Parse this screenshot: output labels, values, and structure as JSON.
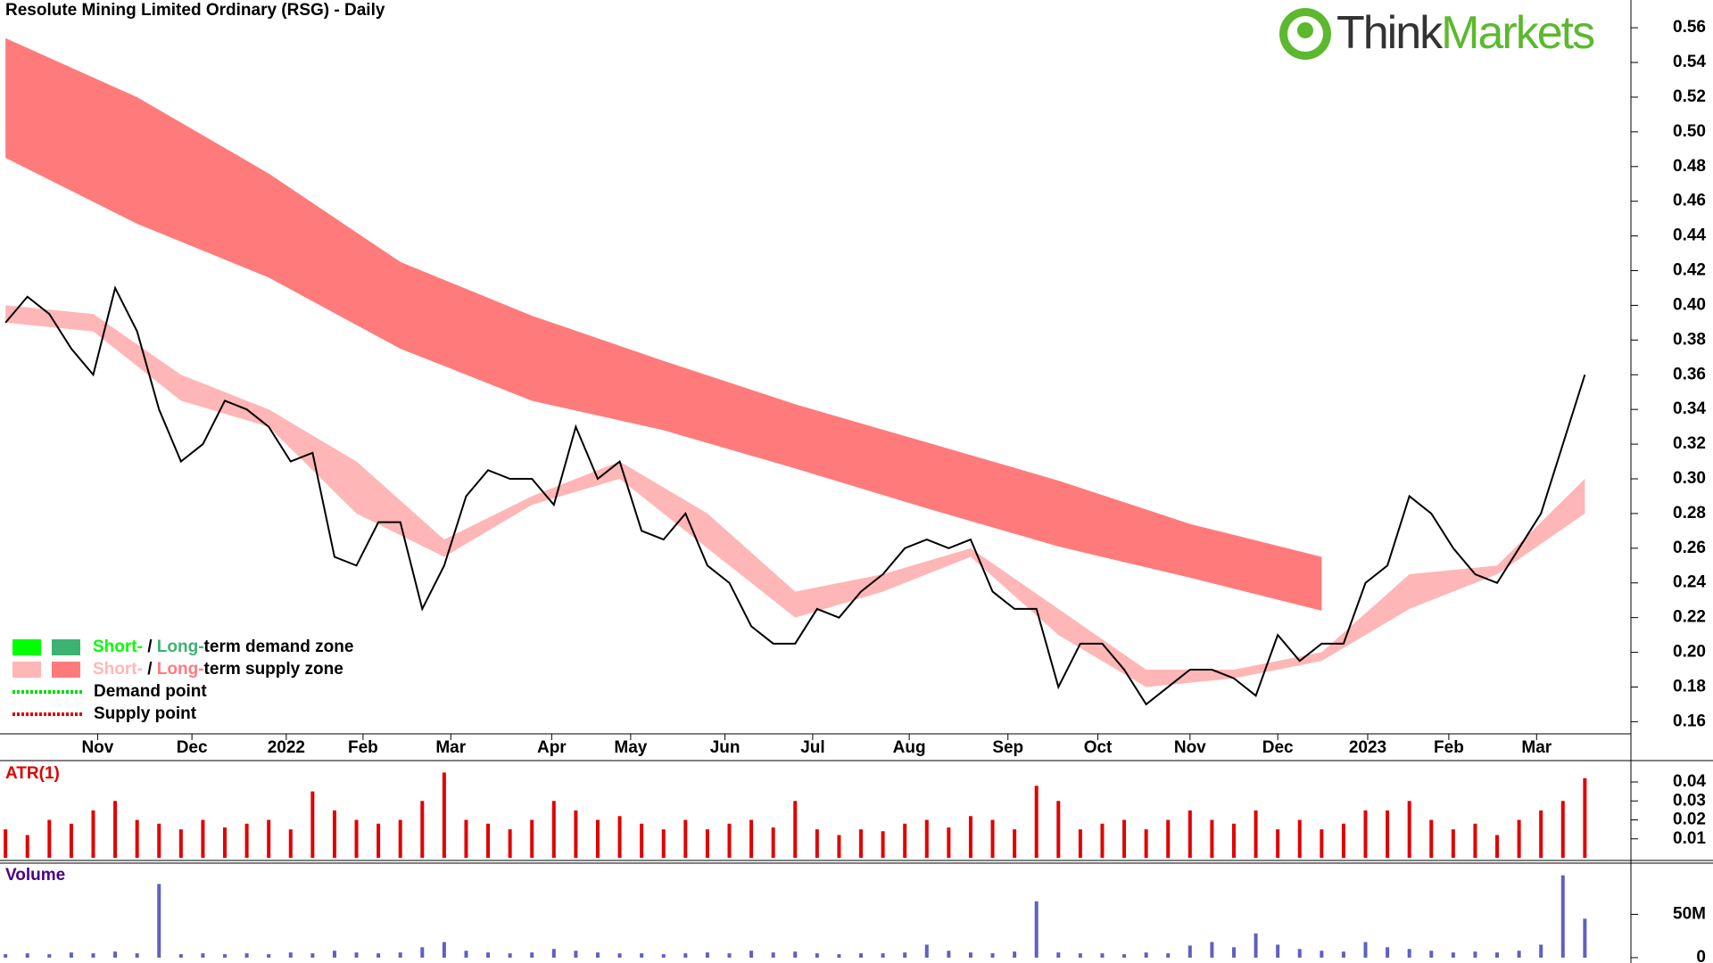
{
  "chart_data": [
    {
      "type": "price",
      "title": "Resolute Mining Limited Ordinary (RSG) - Daily",
      "logo": [
        "Think",
        "Markets"
      ],
      "x": [
        0,
        1,
        2,
        3,
        4,
        5,
        6,
        7,
        8,
        9,
        10,
        11,
        12,
        13,
        14,
        15,
        16,
        17,
        18,
        19,
        20,
        21,
        22,
        23,
        24,
        25,
        26,
        27,
        28,
        29,
        30,
        31,
        32,
        33,
        34,
        35,
        36,
        37,
        38,
        39,
        40,
        41,
        42,
        43,
        44,
        45,
        46,
        47,
        48,
        49,
        50,
        51,
        52,
        53,
        54,
        55,
        56,
        57,
        58,
        59,
        60,
        61,
        62,
        63,
        64,
        65,
        66,
        67,
        68,
        69,
        70,
        71,
        72
      ],
      "xlim": [
        -0.25,
        74.1
      ],
      "xticks": [
        {
          "value": 4.2,
          "label": "Nov"
        },
        {
          "value": 8.5,
          "label": "Dec"
        },
        {
          "value": 12.8,
          "label": "2022"
        },
        {
          "value": 16.3,
          "label": "Feb"
        },
        {
          "value": 20.3,
          "label": "Mar"
        },
        {
          "value": 24.9,
          "label": "Apr"
        },
        {
          "value": 28.5,
          "label": "May"
        },
        {
          "value": 32.8,
          "label": "Jun"
        },
        {
          "value": 36.8,
          "label": "Jul"
        },
        {
          "value": 41.2,
          "label": "Aug"
        },
        {
          "value": 45.7,
          "label": "Sep"
        },
        {
          "value": 49.8,
          "label": "Oct"
        },
        {
          "value": 54.0,
          "label": "Nov"
        },
        {
          "value": 58.0,
          "label": "Dec"
        },
        {
          "value": 62.1,
          "label": "2023"
        },
        {
          "value": 65.8,
          "label": "Feb"
        },
        {
          "value": 69.8,
          "label": "Mar"
        }
      ],
      "ylim": [
        0.153,
        0.576
      ],
      "yticks": [
        {
          "value": 0.16,
          "label": "0.16"
        },
        {
          "value": 0.18,
          "label": "0.18"
        },
        {
          "value": 0.2,
          "label": "0.20"
        },
        {
          "value": 0.22,
          "label": "0.22"
        },
        {
          "value": 0.24,
          "label": "0.24"
        },
        {
          "value": 0.26,
          "label": "0.26"
        },
        {
          "value": 0.28,
          "label": "0.28"
        },
        {
          "value": 0.3,
          "label": "0.30"
        },
        {
          "value": 0.32,
          "label": "0.32"
        },
        {
          "value": 0.34,
          "label": "0.34"
        },
        {
          "value": 0.36,
          "label": "0.36"
        },
        {
          "value": 0.38,
          "label": "0.38"
        },
        {
          "value": 0.4,
          "label": "0.40"
        },
        {
          "value": 0.42,
          "label": "0.42"
        },
        {
          "value": 0.44,
          "label": "0.44"
        },
        {
          "value": 0.46,
          "label": "0.46"
        },
        {
          "value": 0.48,
          "label": "0.48"
        },
        {
          "value": 0.5,
          "label": "0.50"
        },
        {
          "value": 0.52,
          "label": "0.52"
        },
        {
          "value": 0.54,
          "label": "0.54"
        },
        {
          "value": 0.56,
          "label": "0.56"
        }
      ],
      "series": [
        {
          "color": "#000000",
          "values": [
            0.39,
            0.405,
            0.395,
            0.375,
            0.36,
            0.41,
            0.385,
            0.34,
            0.31,
            0.32,
            0.345,
            0.34,
            0.33,
            0.31,
            0.315,
            0.255,
            0.25,
            0.275,
            0.275,
            0.225,
            0.25,
            0.29,
            0.305,
            0.3,
            0.3,
            0.285,
            0.33,
            0.3,
            0.31,
            0.27,
            0.265,
            0.28,
            0.25,
            0.24,
            0.215,
            0.205,
            0.205,
            0.225,
            0.22,
            0.235,
            0.245,
            0.26,
            0.265,
            0.26,
            0.265,
            0.235,
            0.225,
            0.225,
            0.18,
            0.205,
            0.205,
            0.19,
            0.17,
            0.18,
            0.19,
            0.19,
            0.185,
            0.175,
            0.21,
            0.195,
            0.205,
            0.205,
            0.24,
            0.25,
            0.29,
            0.28,
            0.26,
            0.245,
            0.24,
            0.26,
            0.28,
            0.32,
            0.36
          ]
        }
      ],
      "zones": [
        {
          "color": "#ff7b7b",
          "x": [
            0,
            6,
            12,
            18,
            24,
            30,
            36,
            42,
            48,
            54,
            60
          ],
          "upper": [
            0.554,
            0.52,
            0.476,
            0.425,
            0.394,
            0.368,
            0.343,
            0.321,
            0.299,
            0.274,
            0.255
          ],
          "lower": [
            0.485,
            0.447,
            0.416,
            0.375,
            0.345,
            0.328,
            0.306,
            0.283,
            0.261,
            0.243,
            0.224
          ]
        },
        {
          "color": "#ffb6b6",
          "x": [
            0,
            4,
            8,
            12,
            16,
            20,
            24,
            28,
            32,
            36,
            40,
            44,
            48,
            52,
            56,
            60,
            64,
            68,
            72
          ],
          "upper": [
            0.4,
            0.395,
            0.36,
            0.34,
            0.31,
            0.265,
            0.29,
            0.31,
            0.28,
            0.235,
            0.245,
            0.26,
            0.225,
            0.19,
            0.19,
            0.2,
            0.245,
            0.25,
            0.3
          ],
          "lower": [
            0.39,
            0.385,
            0.345,
            0.33,
            0.28,
            0.255,
            0.285,
            0.3,
            0.26,
            0.22,
            0.235,
            0.255,
            0.21,
            0.18,
            0.185,
            0.195,
            0.225,
            0.245,
            0.28
          ]
        }
      ],
      "legend": [
        {
          "short": "Short-",
          "sep": " / ",
          "long": "Long-",
          "rest": "term demand zone",
          "colors": [
            "#00ff00",
            "#3cb371"
          ]
        },
        {
          "short": "Short-",
          "sep": " / ",
          "long": "Long-",
          "rest": "term supply zone",
          "colors": [
            "#ffb6b6",
            "#ff7b7b"
          ]
        },
        {
          "label": "Demand point",
          "color": "#00dd00"
        },
        {
          "label": "Supply point",
          "color": "#dd0000"
        }
      ]
    },
    {
      "type": "bar",
      "title": "ATR(1)",
      "color": "#e00000",
      "ylim": [
        0,
        0.048
      ],
      "yticks": [
        0.01,
        0.02,
        0.03,
        0.04
      ],
      "values": [
        0.015,
        0.012,
        0.02,
        0.018,
        0.025,
        0.03,
        0.02,
        0.018,
        0.015,
        0.02,
        0.016,
        0.018,
        0.02,
        0.015,
        0.035,
        0.025,
        0.02,
        0.018,
        0.02,
        0.03,
        0.045,
        0.02,
        0.018,
        0.015,
        0.02,
        0.03,
        0.025,
        0.02,
        0.022,
        0.018,
        0.015,
        0.02,
        0.015,
        0.018,
        0.02,
        0.016,
        0.03,
        0.015,
        0.012,
        0.015,
        0.014,
        0.018,
        0.02,
        0.016,
        0.022,
        0.02,
        0.015,
        0.038,
        0.03,
        0.015,
        0.018,
        0.02,
        0.015,
        0.02,
        0.025,
        0.02,
        0.018,
        0.025,
        0.015,
        0.02,
        0.015,
        0.018,
        0.025,
        0.025,
        0.03,
        0.02,
        0.015,
        0.018,
        0.012,
        0.02,
        0.025,
        0.03,
        0.042
      ]
    },
    {
      "type": "bar",
      "title": "Volume",
      "color": "#6060c0",
      "ylim": [
        0,
        105
      ],
      "yticks": [
        0,
        {
          "value": 50,
          "label": "50M"
        }
      ],
      "values": [
        4,
        5,
        4,
        6,
        5,
        7,
        5,
        85,
        4,
        5,
        4,
        5,
        4,
        6,
        5,
        8,
        6,
        5,
        6,
        12,
        18,
        8,
        6,
        5,
        6,
        10,
        8,
        6,
        5,
        5,
        4,
        5,
        6,
        5,
        8,
        6,
        7,
        5,
        4,
        5,
        5,
        6,
        15,
        8,
        6,
        5,
        7,
        65,
        6,
        5,
        5,
        4,
        6,
        5,
        14,
        18,
        12,
        28,
        15,
        10,
        8,
        7,
        18,
        12,
        10,
        8,
        6,
        7,
        6,
        8,
        15,
        95,
        45
      ]
    }
  ]
}
